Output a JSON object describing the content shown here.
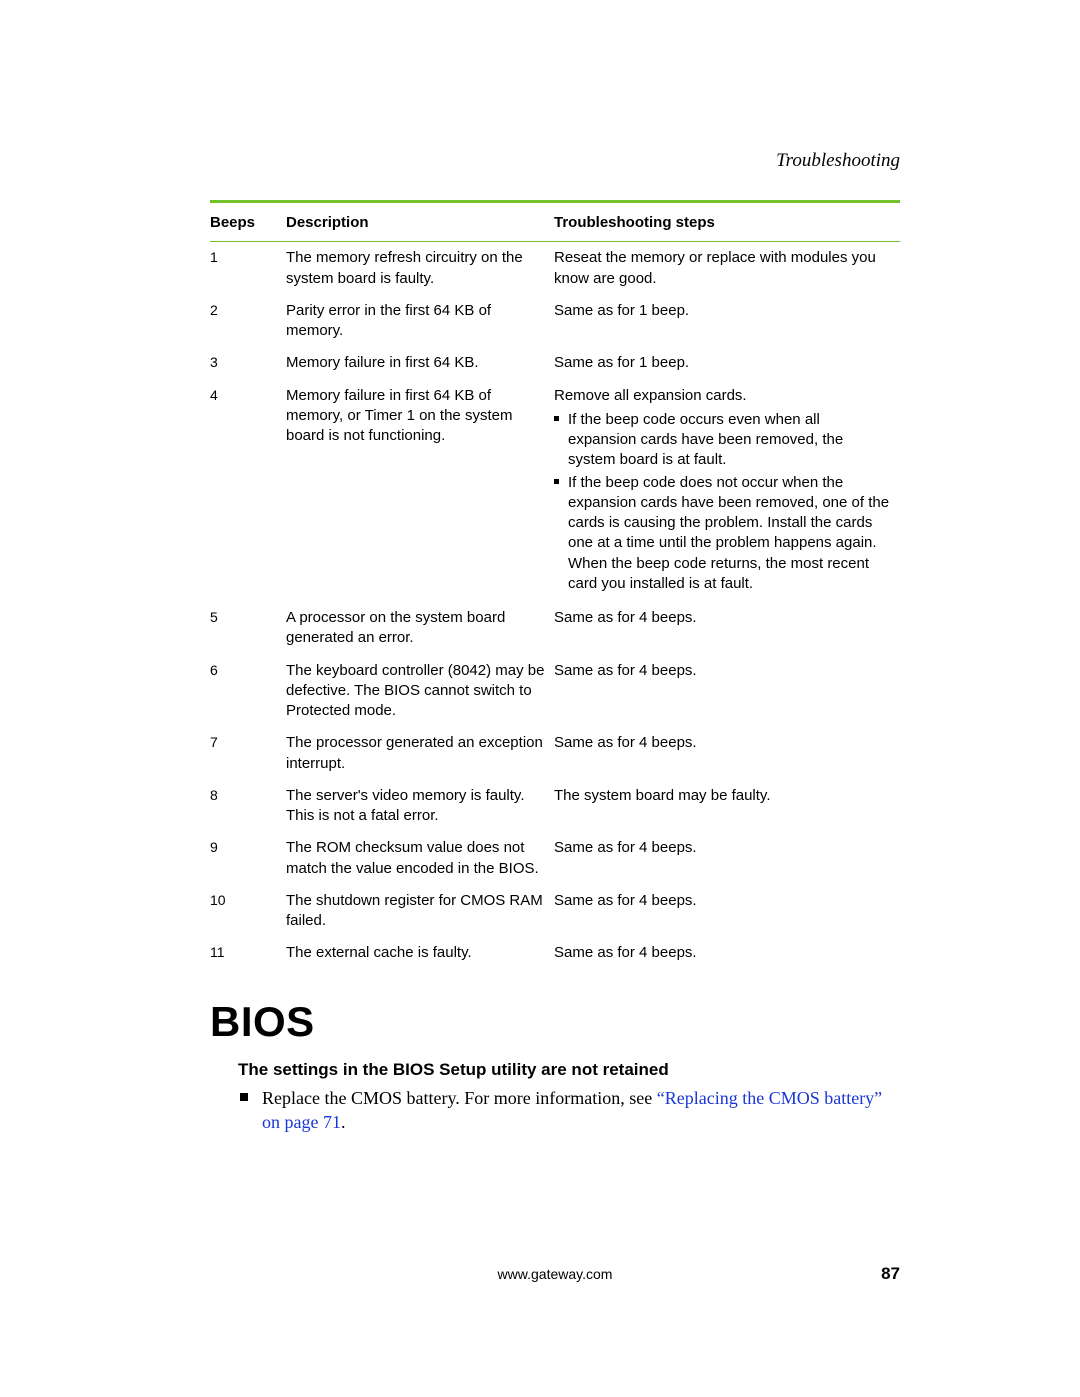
{
  "runningHead": "Troubleshooting",
  "table": {
    "headers": {
      "beeps": "Beeps",
      "desc": "Description",
      "steps": "Troubleshooting steps"
    },
    "rows": [
      {
        "beeps": "1",
        "desc": "The memory refresh circuitry on the system board is faulty.",
        "steps": "Reseat the memory or replace with modules you know are good.",
        "bullets": []
      },
      {
        "beeps": "2",
        "desc": "Parity error in the first 64 KB of memory.",
        "steps": "Same as for 1 beep.",
        "bullets": []
      },
      {
        "beeps": "3",
        "desc": "Memory failure in first 64 KB.",
        "steps": "Same as for 1 beep.",
        "bullets": []
      },
      {
        "beeps": "4",
        "desc": "Memory failure in first 64 KB of memory, or Timer 1 on the system board is not functioning.",
        "steps": "Remove all expansion cards.",
        "bullets": [
          "If the beep code occurs even when all expansion cards have been removed, the system board is at fault.",
          "If the beep code does not occur when the expansion cards have been removed, one of the cards is causing the problem. Install the cards one at a time until the problem happens again. When the beep code returns, the most recent card you installed is at fault."
        ]
      },
      {
        "beeps": "5",
        "desc": "A processor on the system board generated an error.",
        "steps": "Same as for 4 beeps.",
        "bullets": []
      },
      {
        "beeps": "6",
        "desc": "The keyboard controller (8042) may be defective. The BIOS cannot switch to Protected mode.",
        "steps": "Same as for 4 beeps.",
        "bullets": []
      },
      {
        "beeps": "7",
        "desc": "The processor generated an exception interrupt.",
        "steps": "Same as for 4 beeps.",
        "bullets": []
      },
      {
        "beeps": "8",
        "desc": "The server's video memory is faulty. This is not a fatal error.",
        "steps": "The system board may be faulty.",
        "bullets": []
      },
      {
        "beeps": "9",
        "desc": "The ROM checksum value does not match the value encoded in the BIOS.",
        "steps": "Same as for 4 beeps.",
        "bullets": []
      },
      {
        "beeps": "10",
        "desc": "The shutdown register for CMOS RAM failed.",
        "steps": "Same as for 4 beeps.",
        "bullets": []
      },
      {
        "beeps": "11",
        "desc": "The external cache is faulty.",
        "steps": "Same as for 4 beeps.",
        "bullets": []
      }
    ]
  },
  "biosHeading": "BIOS",
  "biosIssue": "The settings in the BIOS Setup utility are not retained",
  "biosStepLead": "Replace the CMOS battery. For more information, see ",
  "biosStepXref": "“Replacing the CMOS battery” on page 71",
  "biosStepTail": ".",
  "footerUrl": "www.gateway.com",
  "pageNumber": "87"
}
